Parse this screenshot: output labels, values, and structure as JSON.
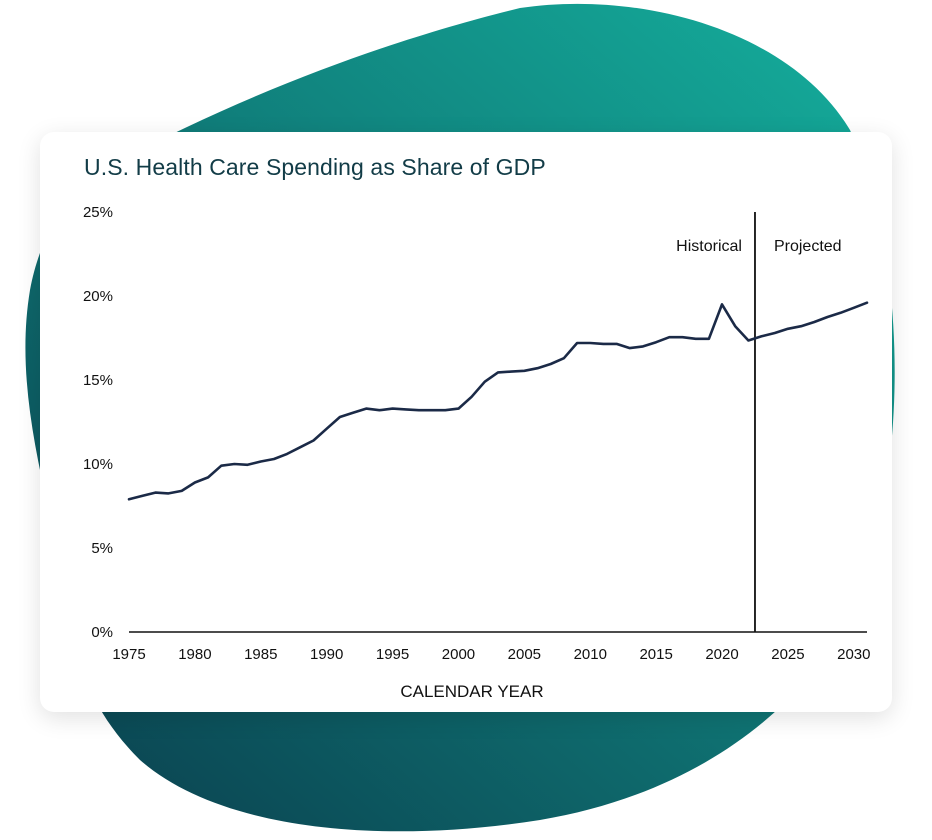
{
  "colors": {
    "blob_light": "#14a898",
    "blob_dark": "#0b4653",
    "line": "#1b2a47",
    "title": "#123c47"
  },
  "chart_data": {
    "type": "line",
    "title": "U.S. Health Care Spending as Share of GDP",
    "xlabel": "CALENDAR YEAR",
    "ylabel": "",
    "xlim": [
      1975,
      2031
    ],
    "ylim": [
      0,
      25
    ],
    "x_ticks": [
      1975,
      1980,
      1985,
      1990,
      1995,
      2000,
      2005,
      2010,
      2015,
      2020,
      2025,
      2030
    ],
    "y_ticks": [
      0,
      5,
      10,
      15,
      20,
      25
    ],
    "y_tick_labels": [
      "0%",
      "5%",
      "10%",
      "15%",
      "20%",
      "25%"
    ],
    "grid": false,
    "divider_x": 2022.5,
    "region_labels": {
      "historical": "Historical",
      "projected": "Projected"
    },
    "series": [
      {
        "x": [
          1975,
          1976,
          1977,
          1978,
          1979,
          1980,
          1981,
          1982,
          1983,
          1984,
          1985,
          1986,
          1987,
          1988,
          1989,
          1990,
          1991,
          1992,
          1993,
          1994,
          1995,
          1996,
          1997,
          1998,
          1999,
          2000,
          2001,
          2002,
          2003,
          2004,
          2005,
          2006,
          2007,
          2008,
          2009,
          2010,
          2011,
          2012,
          2013,
          2014,
          2015,
          2016,
          2017,
          2018,
          2019,
          2020,
          2021,
          2022,
          2023,
          2024,
          2025,
          2026,
          2027,
          2028,
          2029,
          2030,
          2031
        ],
        "values": [
          7.9,
          8.1,
          8.3,
          8.25,
          8.4,
          8.9,
          9.2,
          9.9,
          10.0,
          9.95,
          10.15,
          10.3,
          10.6,
          11.0,
          11.4,
          12.1,
          12.8,
          13.05,
          13.3,
          13.2,
          13.3,
          13.25,
          13.2,
          13.2,
          13.2,
          13.3,
          14.0,
          14.9,
          15.45,
          15.5,
          15.55,
          15.7,
          15.95,
          16.3,
          17.2,
          17.2,
          17.15,
          17.15,
          16.9,
          17.0,
          17.25,
          17.55,
          17.55,
          17.45,
          17.45,
          19.5,
          18.2,
          17.35,
          17.6,
          17.8,
          18.05,
          18.2,
          18.45,
          18.75,
          19.0,
          19.3,
          19.6
        ]
      }
    ]
  }
}
